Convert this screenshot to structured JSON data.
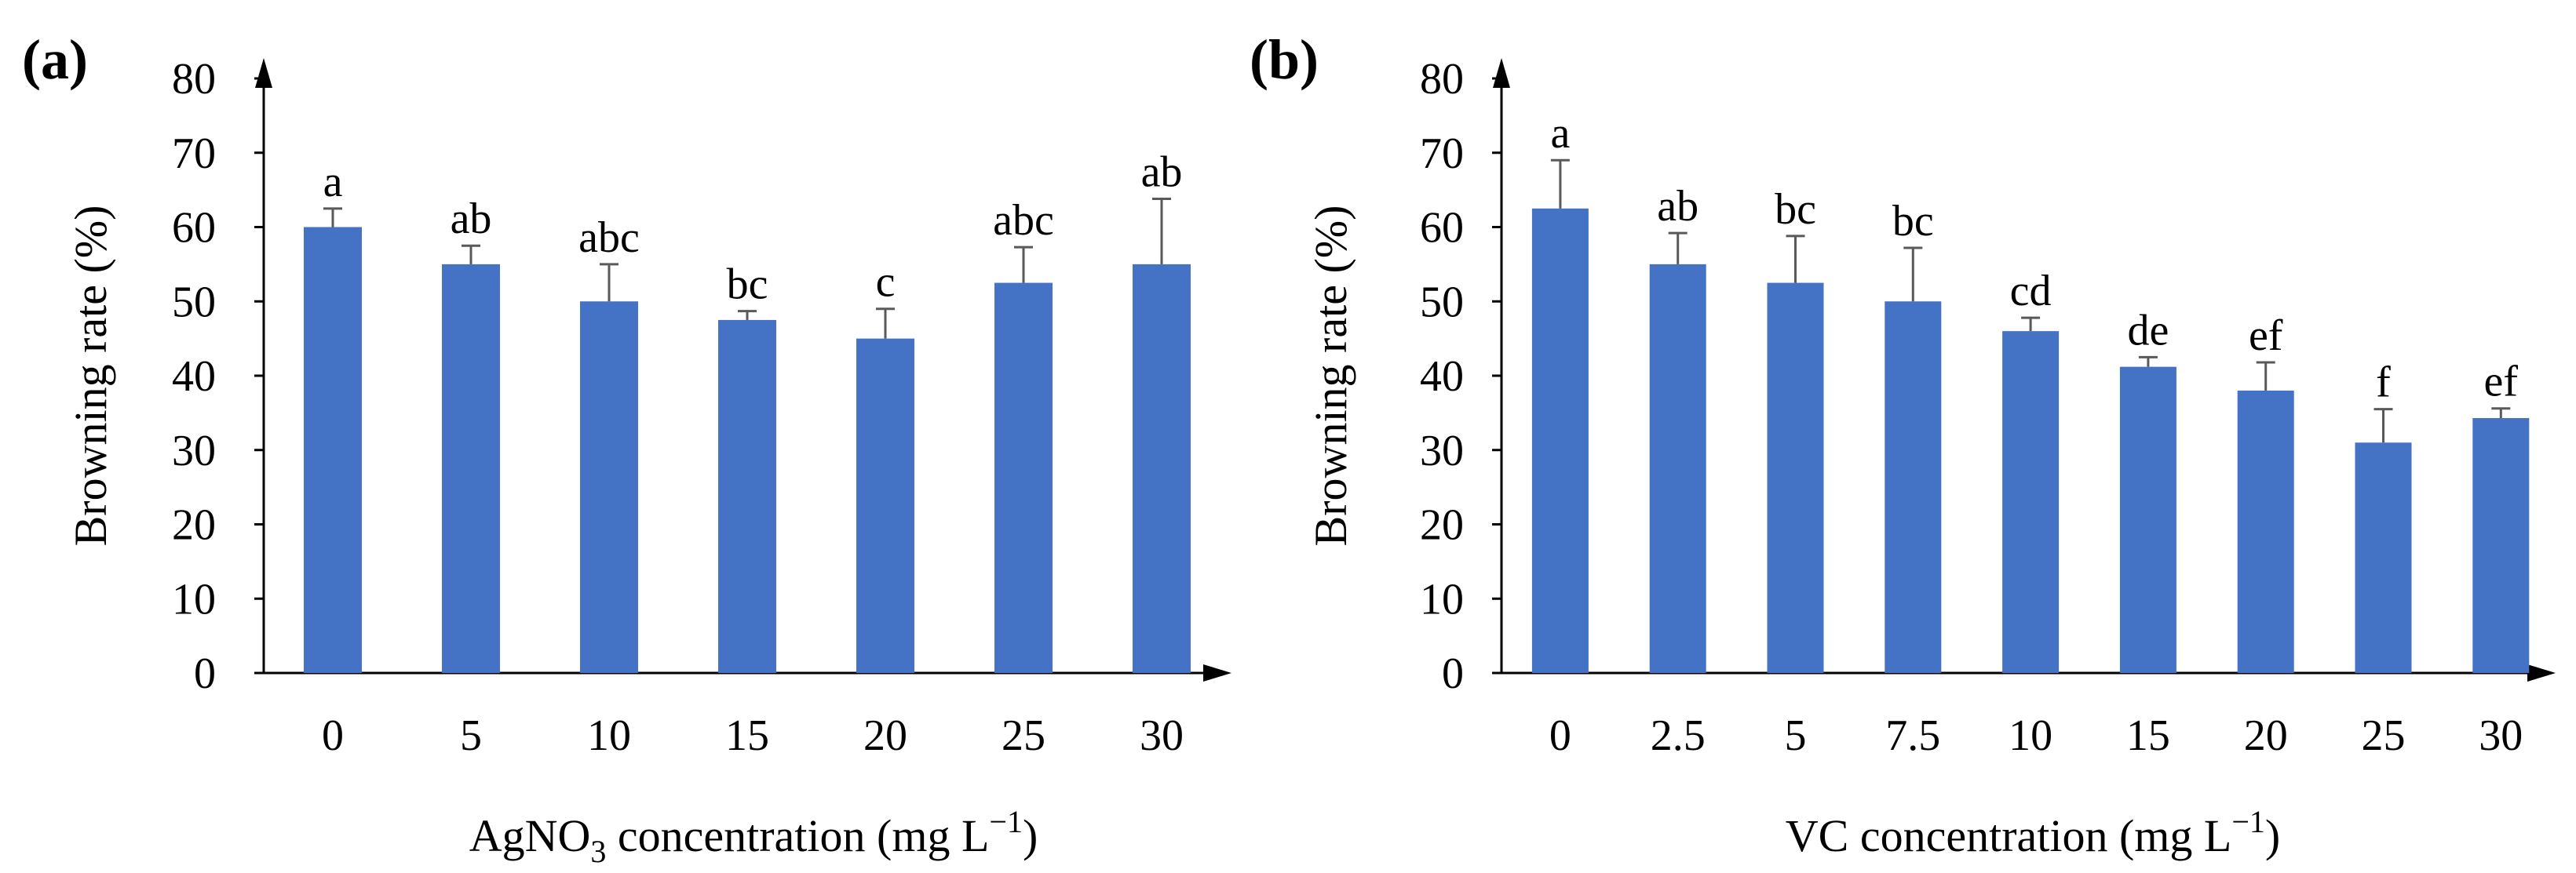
{
  "bar_color": "#4472C4",
  "chart_data": [
    {
      "type": "bar",
      "panel": "(a)",
      "xlabel_prefix": "AgNO",
      "xlabel_sub": "3",
      "xlabel_suffix": " concentration  (mg L",
      "xlabel_sup": "−1",
      "xlabel_end": ")",
      "ylabel": "Browning rate (%)",
      "ylim": [
        0,
        80
      ],
      "yticks": [
        "0",
        "10",
        "20",
        "30",
        "40",
        "50",
        "60",
        "70",
        "80"
      ],
      "categories": [
        "0",
        "5",
        "10",
        "15",
        "20",
        "25",
        "30"
      ],
      "values": [
        60,
        55,
        50,
        47.5,
        45,
        52.5,
        55
      ],
      "errors": [
        2.5,
        2.5,
        5,
        1.2,
        4,
        4.8,
        8.8
      ],
      "labels": [
        "a",
        "ab",
        "abc",
        "bc",
        "c",
        "abc",
        "ab"
      ]
    },
    {
      "type": "bar",
      "panel": "(b)",
      "xlabel_prefix": "VC",
      "xlabel_sub": "",
      "xlabel_suffix": " concentration  (mg L",
      "xlabel_sup": "−1",
      "xlabel_end": ")",
      "ylabel": "Browning rate (%)",
      "ylim": [
        0,
        80
      ],
      "yticks": [
        "0",
        "10",
        "20",
        "30",
        "40",
        "50",
        "60",
        "70",
        "80"
      ],
      "categories": [
        "0",
        "2.5",
        "5",
        "7.5",
        "10",
        "15",
        "20",
        "25",
        "30"
      ],
      "values": [
        62.5,
        55,
        52.5,
        50,
        46,
        41.2,
        38,
        31,
        34.3
      ],
      "errors": [
        6.5,
        4.2,
        6.3,
        7.2,
        1.8,
        1.3,
        3.8,
        4.5,
        1.3
      ],
      "labels": [
        "a",
        "ab",
        "bc",
        "bc",
        "cd",
        "de",
        "ef",
        "f",
        "ef"
      ]
    }
  ]
}
